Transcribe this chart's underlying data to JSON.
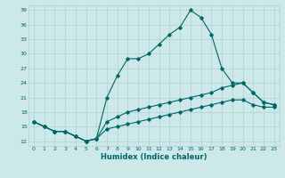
{
  "xlabel": "Humidex (Indice chaleur)",
  "bg_color": "#cce8e8",
  "line_color": "#006666",
  "grid_color": "#b0d0d0",
  "xlim": [
    -0.5,
    23.5
  ],
  "ylim": [
    11,
    40
  ],
  "yticks": [
    12,
    15,
    18,
    21,
    24,
    27,
    30,
    33,
    36,
    39
  ],
  "xticks": [
    0,
    1,
    2,
    3,
    4,
    5,
    6,
    7,
    8,
    9,
    10,
    11,
    12,
    13,
    14,
    15,
    16,
    17,
    18,
    19,
    20,
    21,
    22,
    23
  ],
  "line1_x": [
    0,
    1,
    2,
    3,
    4,
    5,
    6,
    7,
    8,
    9,
    10,
    11,
    12,
    13,
    14,
    15,
    16,
    17,
    18,
    19,
    20,
    21,
    22,
    23
  ],
  "line1_y": [
    16,
    15,
    14,
    14,
    13,
    12,
    12.5,
    21,
    25.5,
    29,
    29,
    30,
    32,
    34,
    35.5,
    39,
    37.5,
    34,
    27,
    24,
    24,
    22,
    20,
    19.5
  ],
  "line2_x": [
    0,
    1,
    2,
    3,
    4,
    5,
    6,
    7,
    8,
    9,
    10,
    11,
    12,
    13,
    14,
    15,
    16,
    17,
    18,
    19,
    20,
    21,
    22,
    23
  ],
  "line2_y": [
    16,
    15,
    14,
    14,
    13,
    12,
    12.5,
    16,
    17,
    18,
    18.5,
    19,
    19.5,
    20,
    20.5,
    21,
    21.5,
    22,
    23,
    23.5,
    24,
    22,
    20,
    19.5
  ],
  "line3_x": [
    0,
    1,
    2,
    3,
    4,
    5,
    6,
    7,
    8,
    9,
    10,
    11,
    12,
    13,
    14,
    15,
    16,
    17,
    18,
    19,
    20,
    21,
    22,
    23
  ],
  "line3_y": [
    16,
    15,
    14,
    14,
    13,
    12,
    12.5,
    14.5,
    15,
    15.5,
    16,
    16.5,
    17,
    17.5,
    18,
    18.5,
    19,
    19.5,
    20,
    20.5,
    20.5,
    19.5,
    19,
    19
  ]
}
